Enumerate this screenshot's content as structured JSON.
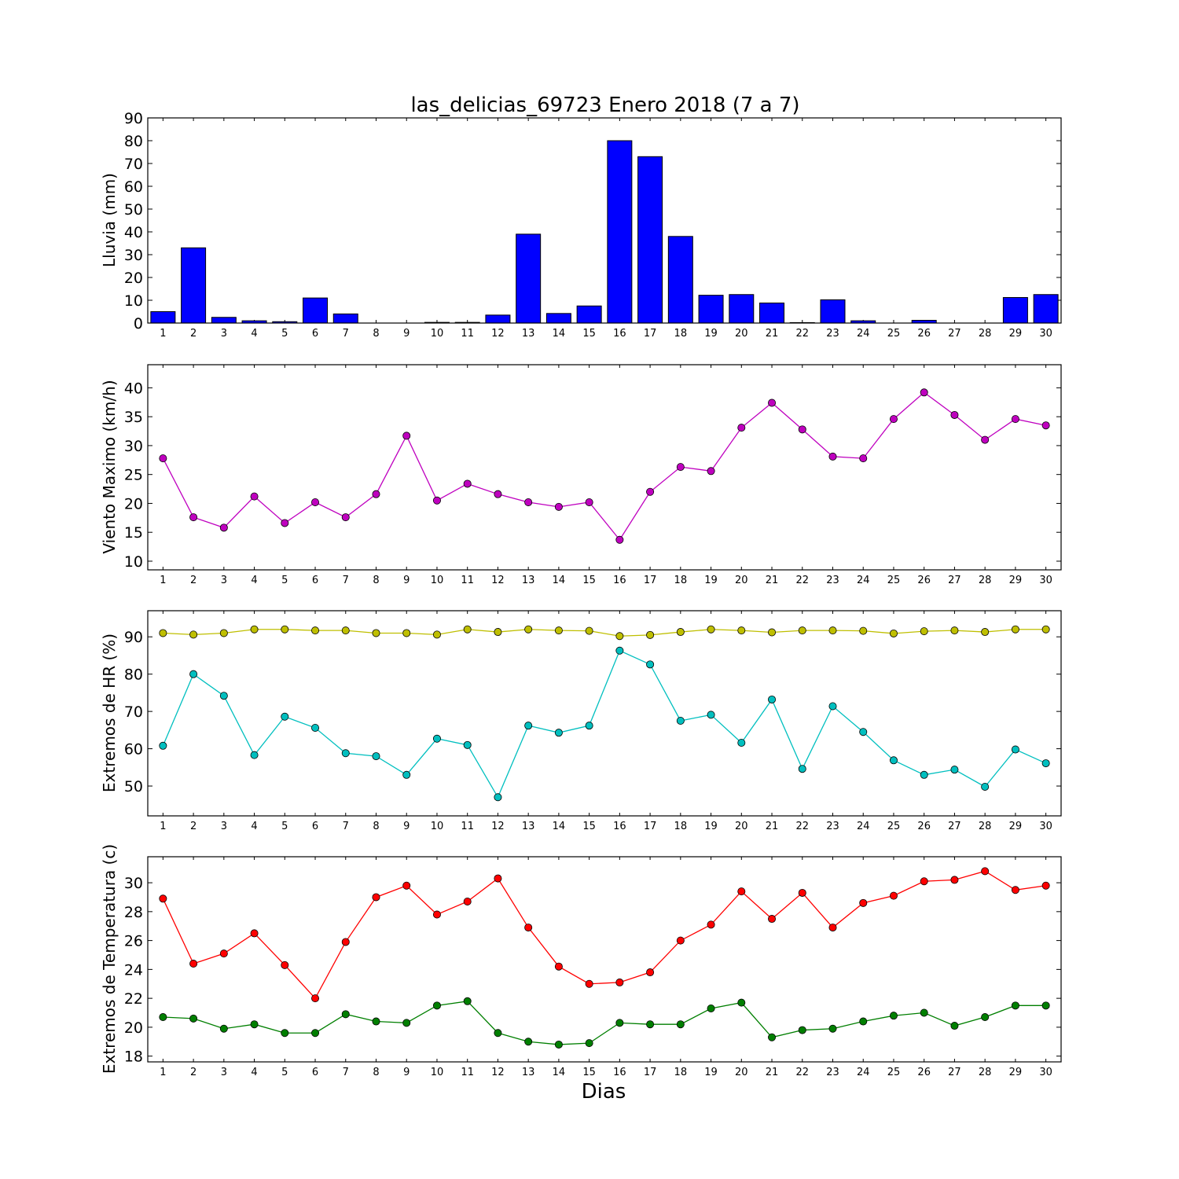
{
  "chart_data": [
    {
      "type": "bar",
      "title": "las_delicias_69723 Enero 2018  (7 a 7)",
      "ylabel": "Lluvia (mm)",
      "ylim": [
        0,
        90
      ],
      "yticks": [
        0,
        10,
        20,
        30,
        40,
        50,
        60,
        70,
        80,
        90
      ],
      "categories": [
        "1",
        "2",
        "3",
        "4",
        "5",
        "6",
        "7",
        "8",
        "9",
        "10",
        "11",
        "12",
        "13",
        "14",
        "15",
        "16",
        "17",
        "18",
        "19",
        "20",
        "21",
        "22",
        "23",
        "24",
        "25",
        "26",
        "27",
        "28",
        "29",
        "30"
      ],
      "values": [
        5,
        33,
        2.5,
        1,
        0.6,
        11,
        4,
        0,
        0,
        0.3,
        0.3,
        3.5,
        39,
        4.2,
        7.5,
        80,
        73,
        38,
        12.2,
        12.5,
        8.8,
        0.2,
        10.2,
        1,
        0,
        1.2,
        0,
        0,
        11.2,
        12.5
      ],
      "colors": {
        "bar": "#0000ff"
      }
    },
    {
      "type": "line",
      "ylabel": "Viento Maximo (km/h)",
      "ylim": [
        8.5,
        44
      ],
      "yticks": [
        10,
        15,
        20,
        25,
        30,
        35,
        40
      ],
      "categories": [
        "1",
        "2",
        "3",
        "4",
        "5",
        "6",
        "7",
        "8",
        "9",
        "10",
        "11",
        "12",
        "13",
        "14",
        "15",
        "16",
        "17",
        "18",
        "19",
        "20",
        "21",
        "22",
        "23",
        "24",
        "25",
        "26",
        "27",
        "28",
        "29",
        "30"
      ],
      "series": [
        {
          "values": [
            27.8,
            17.6,
            15.8,
            21.2,
            16.6,
            20.2,
            17.6,
            21.6,
            31.7,
            20.5,
            23.4,
            21.6,
            20.2,
            19.4,
            20.2,
            13.7,
            22.0,
            26.3,
            25.6,
            33.1,
            37.4,
            32.8,
            28.1,
            27.8,
            34.6,
            39.2,
            35.3,
            31.0,
            34.6,
            33.5
          ],
          "color": "#bf00bf"
        }
      ]
    },
    {
      "type": "line",
      "ylabel": "Extremos de HR (%)",
      "ylim": [
        42,
        97
      ],
      "yticks": [
        50,
        60,
        70,
        80,
        90
      ],
      "categories": [
        "1",
        "2",
        "3",
        "4",
        "5",
        "6",
        "7",
        "8",
        "9",
        "10",
        "11",
        "12",
        "13",
        "14",
        "15",
        "16",
        "17",
        "18",
        "19",
        "20",
        "21",
        "22",
        "23",
        "24",
        "25",
        "26",
        "27",
        "28",
        "29",
        "30"
      ],
      "series": [
        {
          "values": [
            91.0,
            90.6,
            91.0,
            92.0,
            92.0,
            91.7,
            91.7,
            91.0,
            91.0,
            90.6,
            92.0,
            91.3,
            92.0,
            91.7,
            91.6,
            90.2,
            90.5,
            91.3,
            92.0,
            91.7,
            91.2,
            91.7,
            91.7,
            91.6,
            90.9,
            91.5,
            91.7,
            91.3,
            92.0,
            92.0
          ],
          "color": "#bfbf00"
        },
        {
          "values": [
            60.8,
            80.0,
            74.2,
            58.3,
            68.6,
            65.6,
            58.8,
            58.0,
            53.0,
            62.7,
            61.0,
            47.0,
            66.2,
            64.3,
            66.2,
            86.3,
            82.6,
            67.5,
            69.1,
            61.6,
            73.2,
            54.6,
            71.4,
            64.5,
            56.9,
            53.0,
            54.4,
            49.8,
            59.8,
            56.1
          ],
          "color": "#00bfbf"
        }
      ]
    },
    {
      "type": "line",
      "ylabel": "Extremos de Temperatura (c)",
      "xlabel": "Dias",
      "ylim": [
        17.6,
        31.8
      ],
      "yticks": [
        18,
        20,
        22,
        24,
        26,
        28,
        30
      ],
      "categories": [
        "1",
        "2",
        "3",
        "4",
        "5",
        "6",
        "7",
        "8",
        "9",
        "10",
        "11",
        "12",
        "13",
        "14",
        "15",
        "16",
        "17",
        "18",
        "19",
        "20",
        "21",
        "22",
        "23",
        "24",
        "25",
        "26",
        "27",
        "28",
        "29",
        "30"
      ],
      "series": [
        {
          "values": [
            28.9,
            24.4,
            25.1,
            26.5,
            24.3,
            22.0,
            25.9,
            29.0,
            29.8,
            27.8,
            28.7,
            30.3,
            26.9,
            24.2,
            23.0,
            23.1,
            23.8,
            26.0,
            27.1,
            29.4,
            27.5,
            29.3,
            26.9,
            28.6,
            29.1,
            30.1,
            30.2,
            30.8,
            29.5,
            29.8
          ],
          "color": "#ff0000"
        },
        {
          "values": [
            20.7,
            20.6,
            19.9,
            20.2,
            19.6,
            19.6,
            20.9,
            20.4,
            20.3,
            21.5,
            21.8,
            19.6,
            19.0,
            18.8,
            18.9,
            20.3,
            20.2,
            20.2,
            21.3,
            21.7,
            19.3,
            19.8,
            19.9,
            20.4,
            20.8,
            21.0,
            20.1,
            20.7,
            21.5,
            21.5
          ],
          "color": "#007f00"
        }
      ]
    }
  ]
}
